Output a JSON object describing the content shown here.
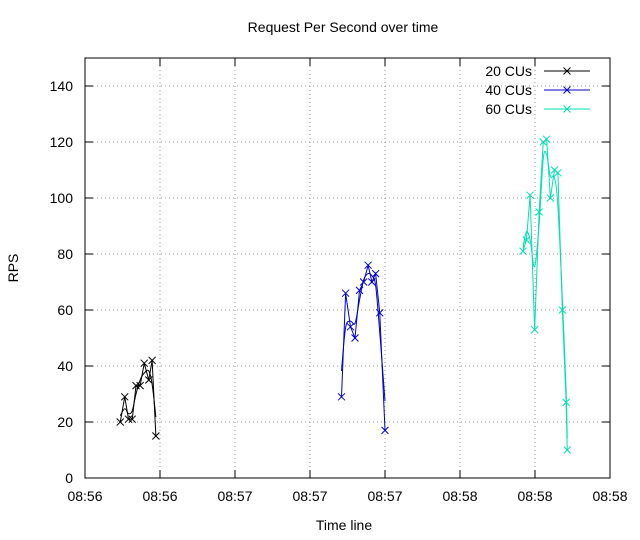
{
  "chart_data": {
    "type": "line",
    "title": "Request Per Second over time",
    "xlabel": "Time line",
    "ylabel": "RPS",
    "xlim": [
      0,
      14
    ],
    "ylim": [
      0,
      150
    ],
    "x_tick_labels": [
      "08:56",
      "08:56",
      "08:57",
      "08:57",
      "08:57",
      "08:58",
      "08:58",
      "08:58"
    ],
    "y_ticks": [
      0,
      20,
      40,
      60,
      80,
      100,
      120,
      140
    ],
    "grid": true,
    "legend_position": "top-right",
    "series": [
      {
        "name": "20 CUs",
        "color": "#000000",
        "points": [
          [
            0.94,
            20
          ],
          [
            1.06,
            29
          ],
          [
            1.16,
            21
          ],
          [
            1.26,
            21
          ],
          [
            1.36,
            33
          ],
          [
            1.47,
            33
          ],
          [
            1.58,
            41
          ],
          [
            1.7,
            35
          ],
          [
            1.79,
            42
          ],
          [
            1.89,
            15
          ]
        ]
      },
      {
        "name": "40 CUs",
        "color": "#0000cc",
        "points": [
          [
            6.84,
            29
          ],
          [
            6.95,
            66
          ],
          [
            7.08,
            54
          ],
          [
            7.2,
            50
          ],
          [
            7.32,
            67
          ],
          [
            7.43,
            70
          ],
          [
            7.55,
            76
          ],
          [
            7.65,
            70
          ],
          [
            7.75,
            73
          ],
          [
            7.86,
            59
          ],
          [
            8.0,
            17
          ]
        ]
      },
      {
        "name": "60 CUs",
        "color": "#00e0b0",
        "points": [
          [
            11.68,
            81
          ],
          [
            11.77,
            85
          ],
          [
            11.87,
            101
          ],
          [
            11.99,
            53
          ],
          [
            12.11,
            95
          ],
          [
            12.22,
            120
          ],
          [
            12.31,
            121
          ],
          [
            12.41,
            100
          ],
          [
            12.52,
            110
          ],
          [
            12.61,
            109
          ],
          [
            12.73,
            60
          ],
          [
            12.83,
            27
          ],
          [
            12.86,
            10
          ]
        ]
      }
    ]
  }
}
